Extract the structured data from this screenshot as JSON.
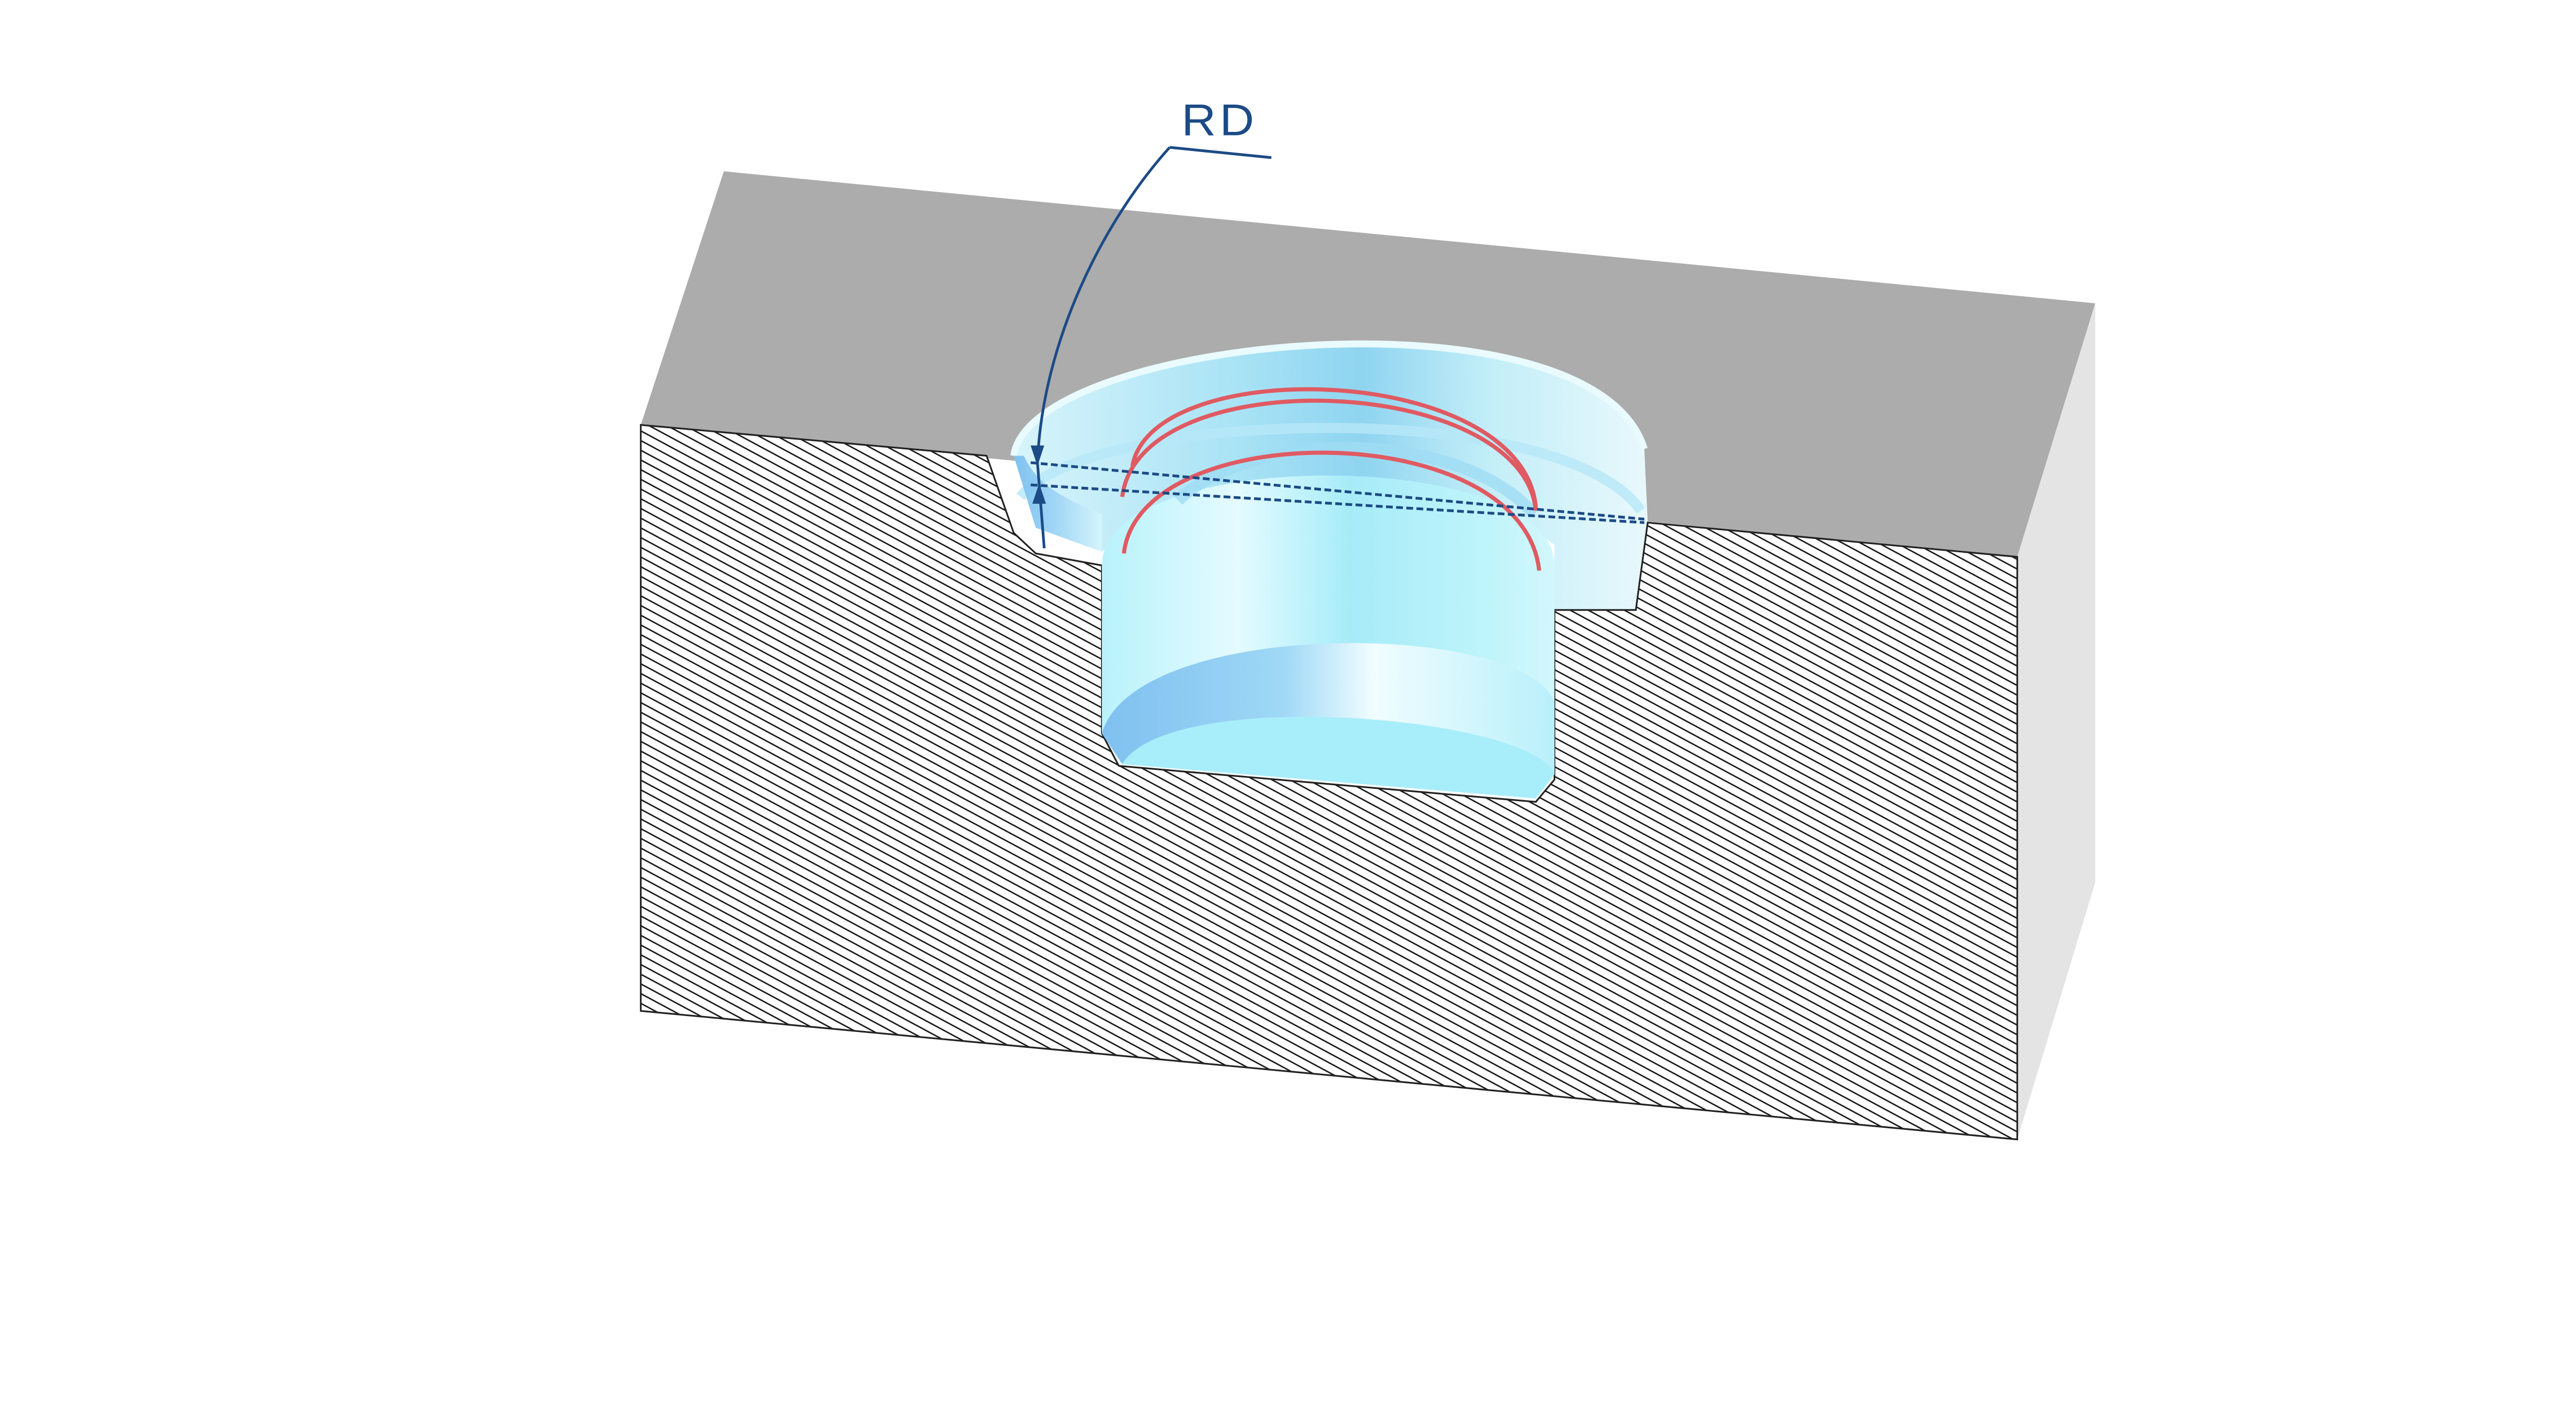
{
  "annotation": {
    "label": "RD"
  },
  "colors": {
    "background": "#ffffff",
    "block_top": "#acacac",
    "block_side": "#e4e4e4",
    "hatch_line": "#1a1a1a",
    "part_light": "#d4f8ff",
    "part_mid": "#a8eefa",
    "part_dark": "#7fc9f2",
    "thread_marks": "#e05a62",
    "dimension_line": "#1c4b86"
  },
  "icons": {
    "thread_marks": "thread-arcs-icon"
  }
}
